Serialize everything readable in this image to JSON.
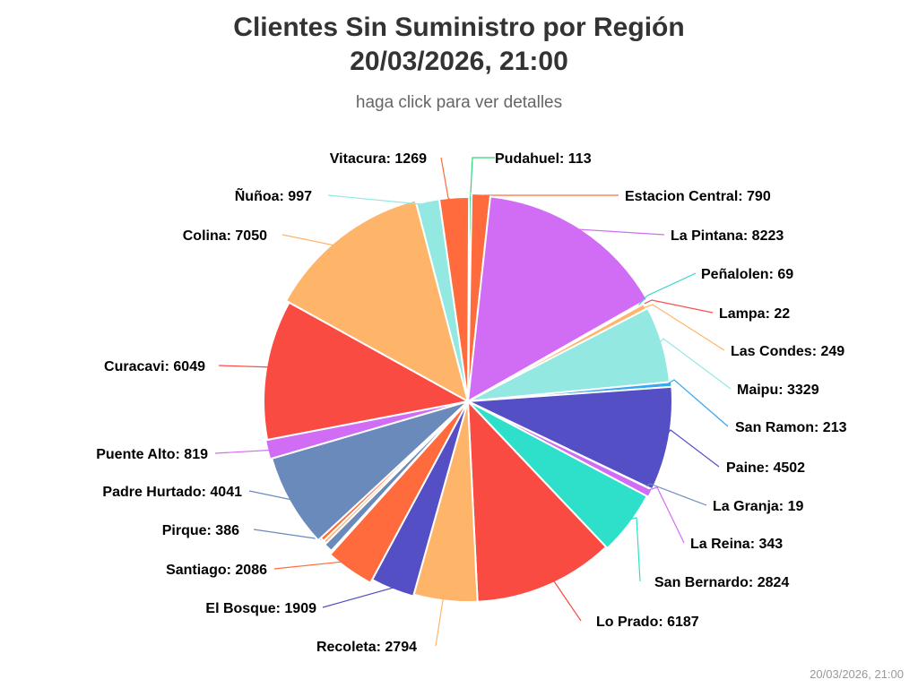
{
  "chart_data": {
    "type": "pie",
    "title": [
      "Clientes Sin Suministro por Región",
      "20/03/2026, 21:00"
    ],
    "subtitle": "haga click para ver detalles",
    "slices": [
      {
        "name": "Pudahuel",
        "value": 113,
        "color": "#2ed47a"
      },
      {
        "name": "Estacion Central",
        "value": 790,
        "color": "#ff6b3d"
      },
      {
        "name": "La Pintana",
        "value": 8223,
        "color": "#d16cf5"
      },
      {
        "name": "Peñalolen",
        "value": 69,
        "color": "#2fd9c8"
      },
      {
        "name": "Lampa",
        "value": 22,
        "color": "#fa4d4d"
      },
      {
        "name": "Las Condes",
        "value": 249,
        "color": "#ffb56b"
      },
      {
        "name": "Maipu",
        "value": 3329,
        "color": "#94e8e2"
      },
      {
        "name": "San Ramon",
        "value": 213,
        "color": "#34a8f2"
      },
      {
        "name": "Paine",
        "value": 4502,
        "color": "#544fc5"
      },
      {
        "name": "La Granja",
        "value": 19,
        "color": "#6b8abc"
      },
      {
        "name": "La Reina",
        "value": 343,
        "color": "#d16cf5"
      },
      {
        "name": "San Bernardo",
        "value": 2824,
        "color": "#2ee0ca"
      },
      {
        "name": "Lo Prado",
        "value": 6187,
        "color": "#fa4b42"
      },
      {
        "name": "Recoleta",
        "value": 2794,
        "color": "#feb56a"
      },
      {
        "name": "El Bosque",
        "value": 1909,
        "color": "#544fc5"
      },
      {
        "name": "Santiago",
        "value": 2086,
        "color": "#ff6b3d"
      },
      {
        "name": "Pirque",
        "value": 386,
        "color": "#6b8abc"
      },
      {
        "name": "Padre Hurtado",
        "value": 4041,
        "color": "#6b8abc"
      },
      {
        "name": "Puente Alto",
        "value": 819,
        "color": "#d16cf5"
      },
      {
        "name": "Curacavi",
        "value": 6049,
        "color": "#fa4b42"
      },
      {
        "name": "Colina",
        "value": 7050,
        "color": "#feb56a"
      },
      {
        "name": "Ñuñoa",
        "value": 997,
        "color": "#94e8e2"
      },
      {
        "name": "Vitacura",
        "value": 1269,
        "color": "#ff6b3d"
      }
    ],
    "extra_slices": [
      {
        "value": 150,
        "color": "#feb56a"
      },
      {
        "value": 180,
        "color": "#ff6b3d"
      },
      {
        "value": 70,
        "color": "#6b8abc"
      }
    ]
  },
  "timestamp": "20/03/2026, 21:00"
}
